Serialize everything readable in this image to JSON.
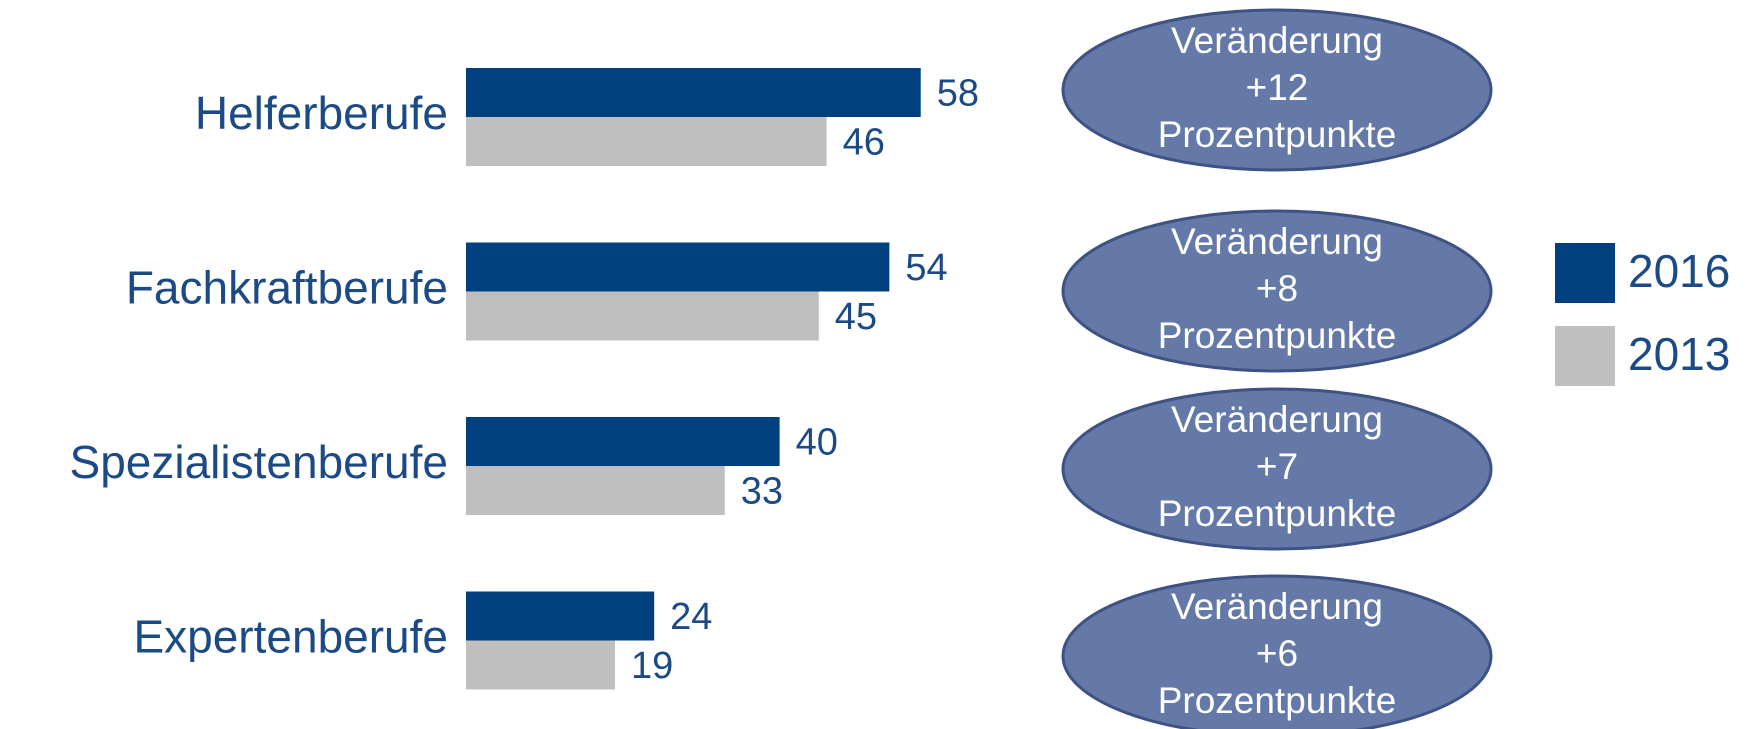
{
  "chart_data": {
    "type": "hbar",
    "categories": [
      "Helferberufe",
      "Fachkraftberufe",
      "Spezialistenberufe",
      "Expertenberufe"
    ],
    "series": [
      {
        "name": "2016",
        "color": "#00407f",
        "values": [
          58,
          54,
          40,
          24
        ]
      },
      {
        "name": "2013",
        "color": "#bfbfbf",
        "values": [
          46,
          45,
          33,
          19
        ]
      }
    ],
    "xlim": [
      0,
      100
    ],
    "legend": "right",
    "annotations": [
      [
        "Veränderung",
        "+12",
        "Prozentpunkte"
      ],
      [
        "Veränderung",
        "+8",
        "Prozentpunkte"
      ],
      [
        "Veränderung",
        "+7",
        "Prozentpunkte"
      ],
      [
        "Veränderung",
        "+6",
        "Prozentpunkte"
      ]
    ],
    "annotation_color": "#6479a8"
  }
}
